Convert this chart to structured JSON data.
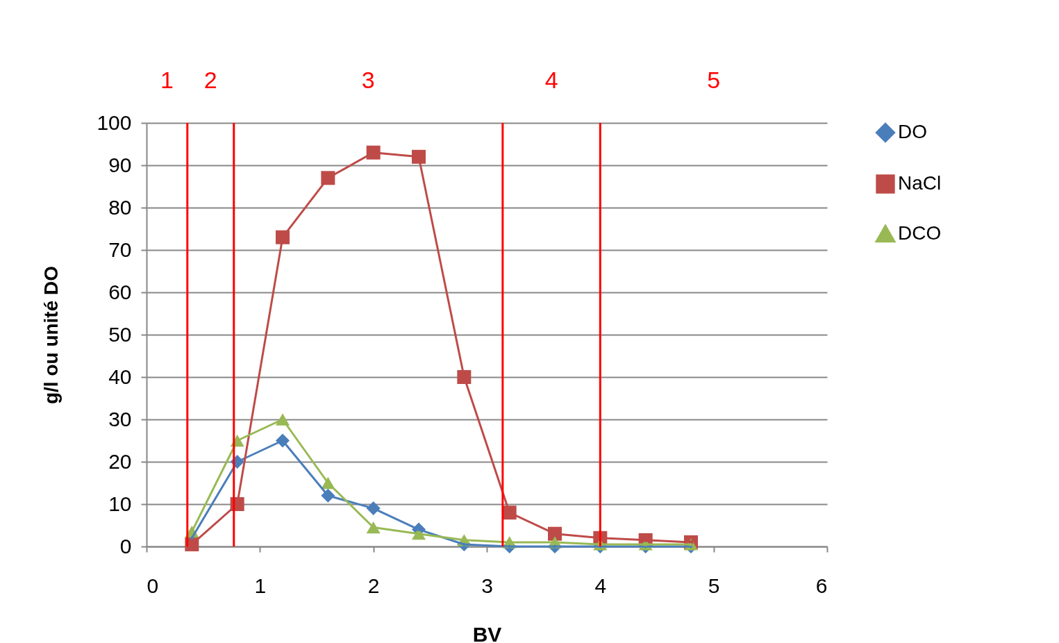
{
  "chart_data": {
    "type": "line",
    "xlabel": "BV",
    "ylabel": "g/l ou unité DO",
    "x": [
      0.4,
      0.8,
      1.2,
      1.6,
      2.0,
      2.4,
      2.8,
      3.2,
      3.6,
      4.0,
      4.4,
      4.8
    ],
    "series": [
      {
        "name": "DO",
        "color": "#4a7ebb",
        "marker": "diamond",
        "values": [
          2,
          20,
          25,
          12,
          9,
          4,
          0.5,
          0,
          0,
          0,
          0,
          0
        ]
      },
      {
        "name": "NaCl",
        "color": "#be4b48",
        "marker": "square",
        "values": [
          0.5,
          10,
          73,
          87,
          93,
          92,
          40,
          8,
          3,
          2,
          1.5,
          1
        ]
      },
      {
        "name": "DCO",
        "color": "#98b954",
        "marker": "triangle",
        "values": [
          3.5,
          25,
          30,
          15,
          4.5,
          3,
          1.5,
          1,
          1,
          0.5,
          0.5,
          0.5
        ]
      }
    ],
    "xlim": [
      0,
      6
    ],
    "xticks": [
      0,
      1,
      2,
      3,
      4,
      5,
      6
    ],
    "ylim": [
      0,
      100
    ],
    "yticks": [
      0,
      10,
      20,
      30,
      40,
      50,
      60,
      70,
      80,
      90,
      100
    ],
    "grid": "y",
    "legend": "right",
    "ref_lines": [
      {
        "axis": "x",
        "value": 0.36,
        "color": "#ff0000"
      },
      {
        "axis": "x",
        "value": 0.77,
        "color": "#ff0000"
      },
      {
        "axis": "x",
        "value": 3.14,
        "color": "#ff0000"
      },
      {
        "axis": "x",
        "value": 4.0,
        "color": "#ff0000"
      }
    ],
    "annotations": [
      "1",
      "2",
      "3",
      "4",
      "5"
    ]
  }
}
